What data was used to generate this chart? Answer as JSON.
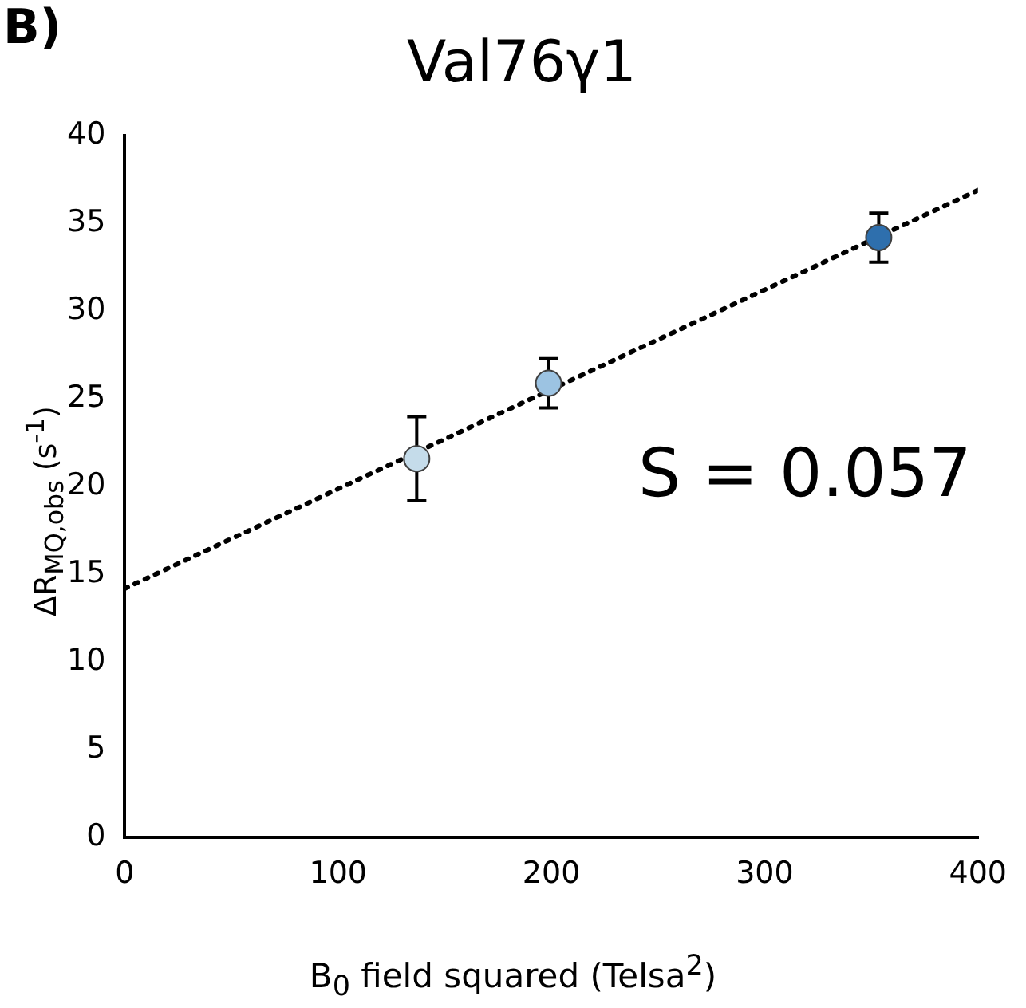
{
  "chart_data": {
    "type": "scatter",
    "title": "Val76γ1",
    "xlabel": "B$_{0}$ field squared (Telsa$^{2}$)",
    "ylabel": "ΔR$_{MQ,obs}$ (s$^{-1}$)",
    "annotations": [
      "B)",
      "S = 0.057"
    ],
    "series": [
      {
        "x": [
          136.9,
          198.7,
          353.5
        ],
        "values": [
          21.6,
          25.9,
          34.2
        ],
        "errors": [
          2.4,
          1.4,
          1.4
        ],
        "colors": [
          "#c5dcea",
          "#9cc3e2",
          "#2e6fad"
        ],
        "marker": "circle"
      },
      {
        "type": "line",
        "x": [
          0,
          400
        ],
        "values": [
          14.2,
          36.9
        ],
        "color": "#000000",
        "line_style": "dotted",
        "marker": "none"
      }
    ],
    "xlim": [
      0,
      400
    ],
    "xticks": [
      0,
      100,
      200,
      300,
      400
    ],
    "ylim": [
      0,
      40
    ],
    "yticks": [
      0,
      5,
      10,
      15,
      20,
      25,
      30,
      35,
      40
    ],
    "grid": false
  }
}
